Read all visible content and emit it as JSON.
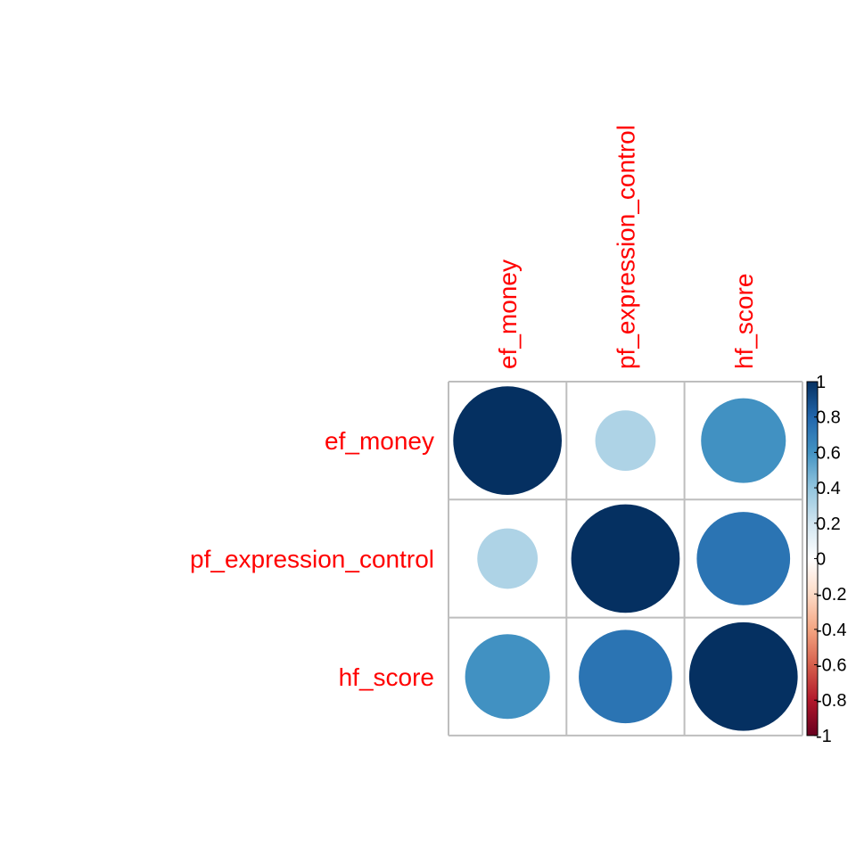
{
  "chart_data": {
    "type": "heatmap",
    "variables": [
      "ef_money",
      "pf_expression_control",
      "hf_score"
    ],
    "matrix": [
      [
        1.0,
        0.31,
        0.61
      ],
      [
        0.31,
        1.0,
        0.74
      ],
      [
        0.61,
        0.74,
        1.0
      ]
    ],
    "marker": "circle",
    "colorbar": {
      "range": [
        -1,
        1
      ],
      "ticks": [
        "1",
        "0.8",
        "0.6",
        "0.4",
        "0.2",
        "0",
        "-0.2",
        "-0.4",
        "-0.6",
        "-0.8",
        "-1"
      ],
      "palette": [
        "#67001F",
        "#B2182B",
        "#D6604D",
        "#F4A582",
        "#FDDBC7",
        "#FFFFFF",
        "#D1E5F0",
        "#92C5DE",
        "#4393C3",
        "#2166AC",
        "#053061"
      ]
    },
    "label_color": "#FF0000",
    "grid_color": "#BEBEBE"
  }
}
